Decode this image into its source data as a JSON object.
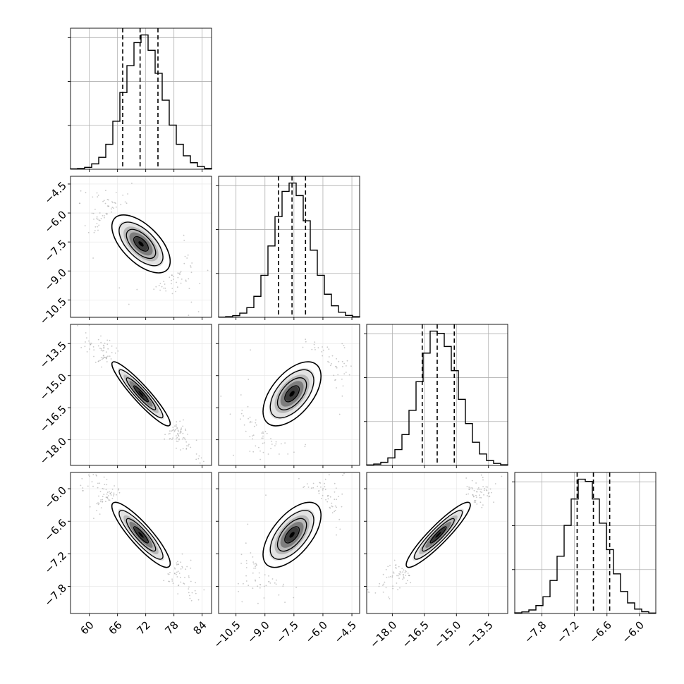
{
  "chart_data": {
    "type": "corner",
    "title": "",
    "grid": true,
    "colors": {
      "line": "#000000",
      "grid": "#b0b0b0",
      "scatter": "#9a9a9a",
      "background": "#ffffff"
    },
    "params": [
      {
        "range": [
          56,
          86
        ],
        "ticks": [
          60,
          66,
          72,
          78,
          84
        ],
        "tick_labels": [
          "60",
          "66",
          "72",
          "78",
          "84"
        ],
        "quantiles": [
          67.1,
          70.8,
          74.6
        ],
        "mean": 71.0,
        "sd": 3.1
      },
      {
        "range": [
          -11.4,
          -4.1
        ],
        "ticks": [
          -10.5,
          -9.0,
          -7.5,
          -6.0,
          -4.5
        ],
        "tick_labels": [
          "−10.5",
          "−9.0",
          "−7.5",
          "−6.0",
          "−4.5"
        ],
        "quantiles": [
          -8.3,
          -7.6,
          -6.9
        ],
        "mean": -7.6,
        "sd": 0.75
      },
      {
        "range": [
          -19.2,
          -12.6
        ],
        "ticks": [
          -18.0,
          -16.5,
          -15.0,
          -13.5
        ],
        "tick_labels": [
          "−18.0",
          "−16.5",
          "−15.0",
          "−13.5"
        ],
        "quantiles": [
          -16.6,
          -15.9,
          -15.1
        ],
        "mean": -15.85,
        "sd": 0.75
      },
      {
        "range": [
          -8.3,
          -5.7
        ],
        "ticks": [
          -7.8,
          -7.2,
          -6.6,
          -6.0
        ],
        "tick_labels": [
          "−7.8",
          "−7.2",
          "−6.6",
          "−6.0"
        ],
        "quantiles": [
          -7.15,
          -6.85,
          -6.55
        ],
        "mean": -6.85,
        "sd": 0.3
      }
    ],
    "correlations": [
      {
        "row": 1,
        "col": 0,
        "rho": -0.6
      },
      {
        "row": 2,
        "col": 0,
        "rho": -0.93
      },
      {
        "row": 2,
        "col": 1,
        "rho": 0.55
      },
      {
        "row": 3,
        "col": 0,
        "rho": -0.88
      },
      {
        "row": 3,
        "col": 1,
        "rho": 0.6
      },
      {
        "row": 3,
        "col": 2,
        "rho": 0.92
      }
    ],
    "histograms": [
      {
        "param": 0,
        "bins": 20,
        "counts": [
          2,
          4,
          10,
          28,
          62,
          130,
          250,
          400,
          540,
          660,
          700,
          620,
          500,
          360,
          230,
          130,
          70,
          34,
          14,
          5
        ]
      },
      {
        "param": 1,
        "bins": 20,
        "counts": [
          1,
          3,
          8,
          20,
          46,
          100,
          200,
          340,
          480,
          600,
          640,
          580,
          460,
          320,
          200,
          110,
          55,
          24,
          9,
          3
        ]
      },
      {
        "param": 2,
        "bins": 20,
        "counts": [
          2,
          6,
          14,
          34,
          72,
          140,
          250,
          380,
          510,
          610,
          600,
          540,
          430,
          300,
          190,
          105,
          52,
          22,
          9,
          3
        ]
      },
      {
        "param": 3,
        "bins": 20,
        "counts": [
          3,
          7,
          16,
          36,
          76,
          150,
          260,
          400,
          520,
          610,
          600,
          520,
          410,
          290,
          180,
          100,
          48,
          20,
          8,
          2
        ]
      }
    ],
    "contour_levels": [
      0.39,
      0.86,
      1.0
    ]
  }
}
